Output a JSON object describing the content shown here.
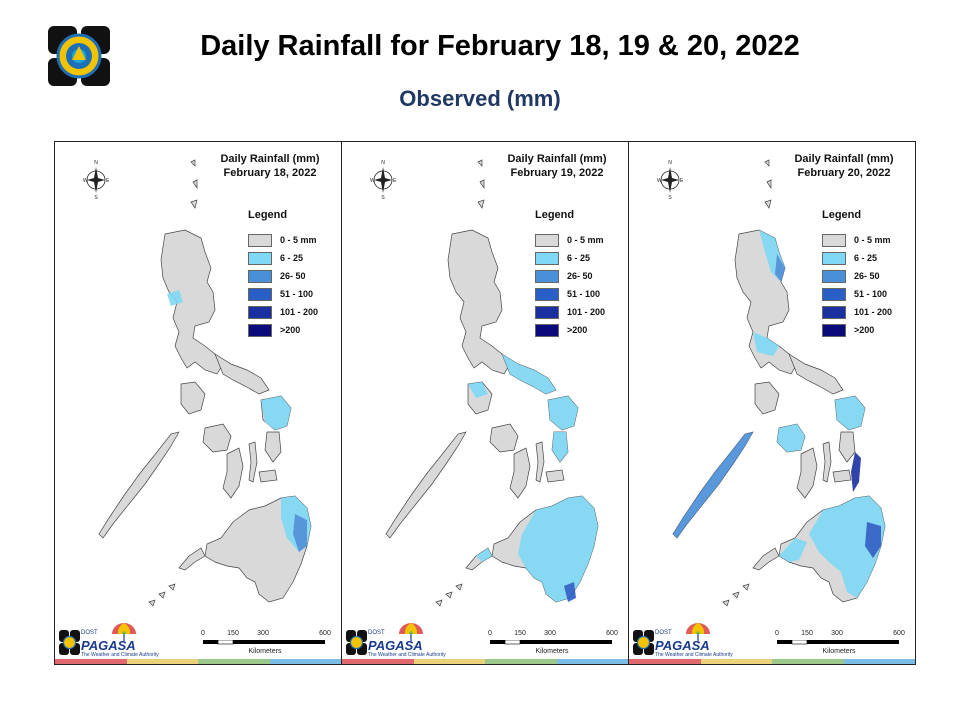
{
  "header": {
    "title": "Daily Rainfall for February 18, 19 & 20, 2022",
    "subtitle": "Observed (mm)"
  },
  "legend": {
    "title": "Legend",
    "items": [
      {
        "label": "0 - 5 mm",
        "color": "#d9d9d9"
      },
      {
        "label": "6 - 25",
        "color": "#7fd8f5"
      },
      {
        "label": "26- 50",
        "color": "#4a90d9"
      },
      {
        "label": "51 - 100",
        "color": "#2a5fc8"
      },
      {
        "label": "101 - 200",
        "color": "#1a2fa0"
      },
      {
        "label": ">200",
        "color": "#0a0a7a"
      }
    ]
  },
  "panels": [
    {
      "title_line1": "Daily Rainfall (mm)",
      "title_line2": "February 18, 2022"
    },
    {
      "title_line1": "Daily Rainfall (mm)",
      "title_line2": "February 19, 2022"
    },
    {
      "title_line1": "Daily Rainfall (mm)",
      "title_line2": "February 20, 2022"
    }
  ],
  "compass": {
    "n": "N",
    "s": "S",
    "e": "E",
    "w": "W"
  },
  "scalebar": {
    "ticks": [
      "0",
      "150",
      "300",
      "600"
    ],
    "unit": "Kilometers"
  },
  "branding": {
    "small": "DOST",
    "name": "PAGASA",
    "tagline": "The Weather and Climate Authority"
  },
  "colors": {
    "land": "#d9d9d9",
    "outline": "#444444",
    "stripe": [
      "#e0676d",
      "#e9d27a",
      "#9cc98b",
      "#7bbde6"
    ]
  }
}
